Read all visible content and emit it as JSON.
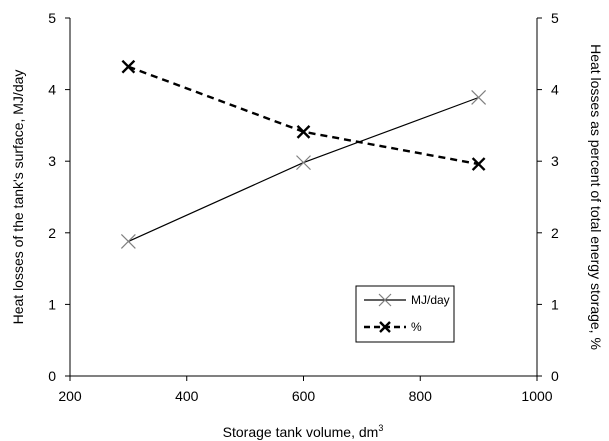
{
  "chart_data": {
    "type": "line",
    "title": "",
    "xlabel": "Storage tank volume, dm",
    "xlabel_superscript": "3",
    "ylabel_left": "Heat losses of the tank's surface, MJ/day",
    "ylabel_right": "Heat losses as percent of total energy storage, %",
    "xlim": [
      200,
      1000
    ],
    "ylim": [
      0,
      5
    ],
    "y2lim": [
      0,
      5
    ],
    "x_ticks": [
      "200",
      "400",
      "600",
      "800",
      "1000"
    ],
    "y_ticks": [
      "0",
      "1",
      "2",
      "3",
      "4",
      "5"
    ],
    "y2_ticks": [
      "0",
      "1",
      "2",
      "3",
      "4",
      "5"
    ],
    "grid": false,
    "legend_position": "center-right",
    "series": [
      {
        "name": "MJ/day",
        "axis": "left",
        "x": [
          300,
          600,
          900
        ],
        "y": [
          1.88,
          2.98,
          3.89
        ],
        "style": "solid",
        "marker": "x",
        "line_color": "#000000",
        "marker_color": "#808080"
      },
      {
        "name": "%",
        "axis": "right",
        "x": [
          300,
          600,
          900
        ],
        "y": [
          4.32,
          3.41,
          2.96
        ],
        "style": "dashed",
        "marker": "x",
        "line_color": "#000000",
        "marker_color": "#000000"
      }
    ]
  }
}
